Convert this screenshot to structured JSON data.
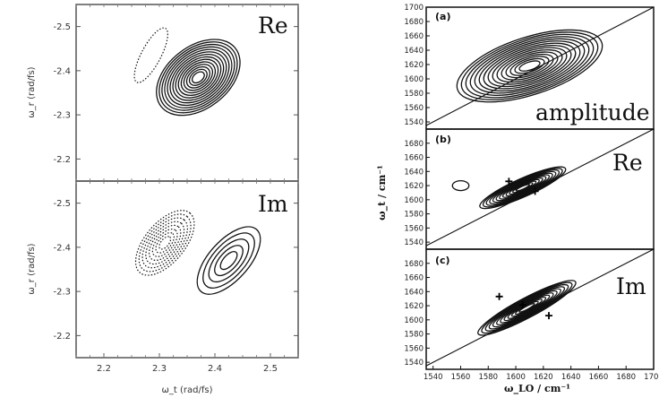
{
  "chart_data": [
    {
      "type": "contour",
      "panels": [
        {
          "label": "Re",
          "xlim": [
            2.15,
            2.55
          ],
          "ylim": [
            -2.55,
            -2.15
          ],
          "xticks": [],
          "yticks": [
            "-2.5",
            "-2.4",
            "-2.3",
            "-2.2"
          ],
          "ylabel": "ω_r (rad/fs)",
          "contours": [
            {
              "cx": 2.37,
              "cy": -2.385,
              "rx": 0.085,
              "ry": 0.07,
              "tilt": -38,
              "levels": 14,
              "style": "solid"
            },
            {
              "cx": 2.285,
              "cy": -2.435,
              "rx": 0.055,
              "ry": 0.022,
              "tilt": -62,
              "levels": 1,
              "style": "dotted"
            }
          ]
        },
        {
          "label": "Im",
          "xlim": [
            2.15,
            2.55
          ],
          "ylim": [
            -2.55,
            -2.15
          ],
          "xticks": [
            "2.2",
            "2.3",
            "2.4",
            "2.5"
          ],
          "yticks": [
            "-2.5",
            "-2.4",
            "-2.3",
            "-2.2"
          ],
          "xlabel": "ω_t (rad/fs)",
          "ylabel": "ω_r (rad/fs)",
          "contours": [
            {
              "cx": 2.31,
              "cy": -2.41,
              "rx": 0.07,
              "ry": 0.045,
              "tilt": -50,
              "levels": 8,
              "style": "dotted"
            },
            {
              "cx": 2.425,
              "cy": -2.37,
              "rx": 0.075,
              "ry": 0.045,
              "tilt": -48,
              "levels": 5,
              "style": "solid"
            }
          ]
        }
      ]
    },
    {
      "type": "contour",
      "panels": [
        {
          "letter": "(a)",
          "label": "amplitude",
          "xlim": [
            1535,
            1700
          ],
          "ylim": [
            1530,
            1700
          ],
          "yticks": [
            "1700",
            "1680",
            "1660",
            "1640",
            "1620",
            "1600",
            "1580",
            "1560",
            "1540"
          ],
          "diagonal": true,
          "contours": [
            {
              "cx": 1610,
              "cy": 1618,
              "rx": 55,
              "ry": 40,
              "tilt": -18,
              "levels": 15,
              "style": "solid"
            }
          ]
        },
        {
          "letter": "(b)",
          "label": "Re",
          "xlim": [
            1535,
            1700
          ],
          "ylim": [
            1530,
            1700
          ],
          "yticks": [
            "1680",
            "1660",
            "1640",
            "1620",
            "1600",
            "1580",
            "1560",
            "1540"
          ],
          "diagonal": true,
          "contours": [
            {
              "cx": 1605,
              "cy": 1617,
              "rx": 34,
              "ry": 13,
              "tilt": -24,
              "levels": 12,
              "style": "solid"
            },
            {
              "cx": 1560,
              "cy": 1620,
              "rx": 6,
              "ry": 7,
              "tilt": 0,
              "levels": 1,
              "style": "solid"
            }
          ],
          "markers": [
            [
              1595,
              1626
            ],
            [
              1614,
              1612
            ]
          ]
        },
        {
          "letter": "(c)",
          "label": "Im",
          "xlim": [
            1535,
            1700
          ],
          "ylim": [
            1530,
            1700
          ],
          "yticks": [
            "1680",
            "1660",
            "1640",
            "1620",
            "1600",
            "1580",
            "1560",
            "1540"
          ],
          "xticks": [
            "1540",
            "1560",
            "1580",
            "1600",
            "1620",
            "1640",
            "1660",
            "1680",
            "1700"
          ],
          "xlabel": "ω_LO / cm⁻¹",
          "ylabel": "ω_t / cm⁻¹",
          "diagonal": true,
          "contours": [
            {
              "cx": 1608,
              "cy": 1617,
              "rx": 40,
              "ry": 14,
              "tilt": -28,
              "levels": 12,
              "style": "solid"
            }
          ],
          "markers": [
            [
              1588,
              1633
            ],
            [
              1605,
              1621
            ],
            [
              1624,
              1606
            ]
          ]
        }
      ]
    }
  ]
}
